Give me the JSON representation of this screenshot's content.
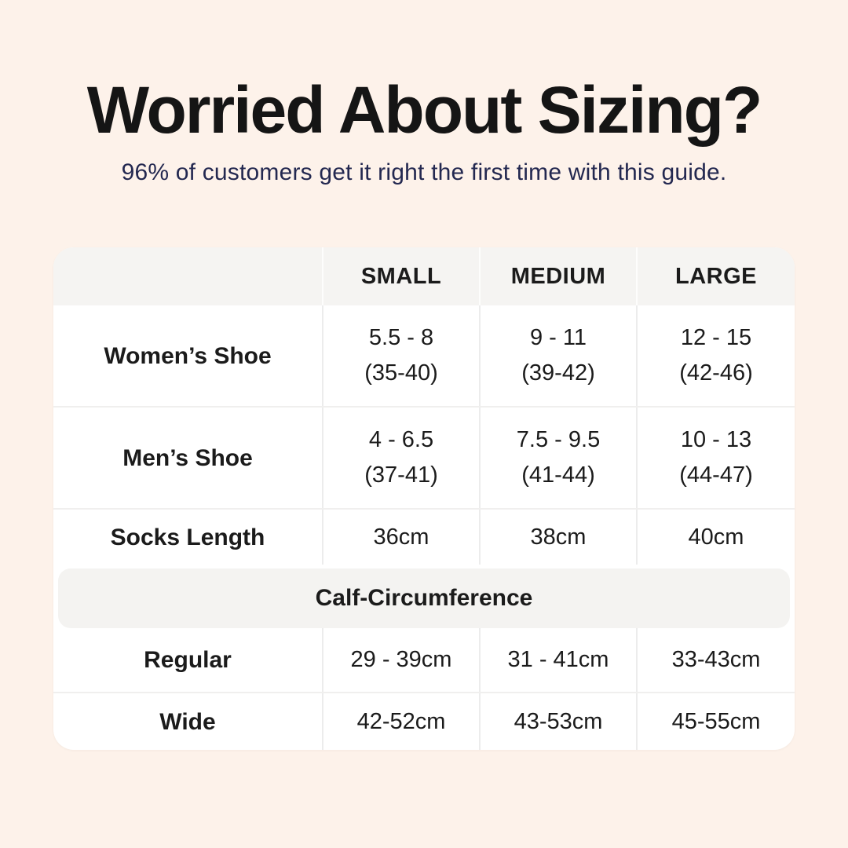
{
  "page": {
    "title": "Worried About Sizing?",
    "subtitle": "96% of customers get it right the first time with this guide."
  },
  "table": {
    "header": [
      "",
      "SMALL",
      "MEDIUM",
      "LARGE"
    ],
    "shoe_rows": [
      {
        "label": "Women’s Shoe",
        "cells": [
          {
            "line1": "5.5 - 8",
            "line2": "(35-40)"
          },
          {
            "line1": "9 - 11",
            "line2": "(39-42)"
          },
          {
            "line1": "12 - 15",
            "line2": "(42-46)"
          }
        ]
      },
      {
        "label": "Men’s Shoe",
        "cells": [
          {
            "line1": "4 - 6.5",
            "line2": "(37-41)"
          },
          {
            "line1": "7.5 - 9.5",
            "line2": "(41-44)"
          },
          {
            "line1": "10 - 13",
            "line2": "(44-47)"
          }
        ]
      }
    ],
    "socks_row": {
      "label": "Socks Length",
      "cells": [
        "36cm",
        "38cm",
        "40cm"
      ]
    },
    "section_header": "Calf-Circumference",
    "calf_rows": [
      {
        "label": "Regular",
        "cells": [
          "29 - 39cm",
          "31 - 41cm",
          "33-43cm"
        ]
      },
      {
        "label": "Wide",
        "cells": [
          "42-52cm",
          "43-53cm",
          "45-55cm"
        ]
      }
    ]
  },
  "theme": {
    "background": "#fdf2ea",
    "table_background": "#ffffff",
    "header_band_gray": "#f5f4f2",
    "divider_gray": "#ececec",
    "title_color": "#151515",
    "subtitle_color": "#232850",
    "table_text_color": "#1b1b1b"
  }
}
